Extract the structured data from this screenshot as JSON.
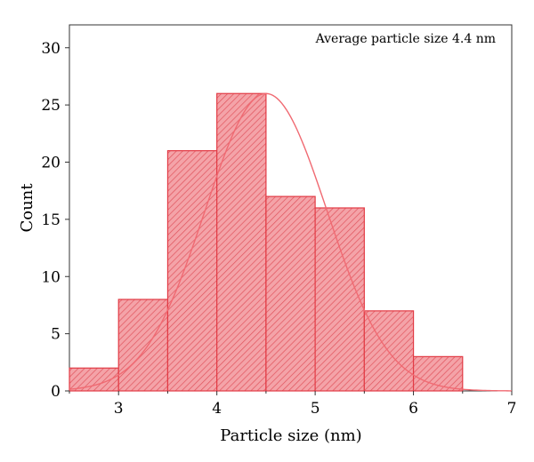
{
  "chart_data": {
    "type": "bar",
    "annotation": "Average particle size 4.4 nm",
    "xlabel": "Particle size (nm)",
    "ylabel": "Count",
    "xlim": [
      2.5,
      7
    ],
    "ylim": [
      0,
      32
    ],
    "x_ticks": [
      3,
      4,
      5,
      6,
      7
    ],
    "y_ticks": [
      0,
      5,
      10,
      15,
      20,
      25,
      30
    ],
    "grid": false,
    "bin_width": 0.5,
    "bins": [
      {
        "start": 2.5,
        "end": 3.0,
        "count": 2
      },
      {
        "start": 3.0,
        "end": 3.5,
        "count": 8
      },
      {
        "start": 3.5,
        "end": 4.0,
        "count": 21
      },
      {
        "start": 4.0,
        "end": 4.5,
        "count": 26
      },
      {
        "start": 4.5,
        "end": 5.0,
        "count": 17
      },
      {
        "start": 5.0,
        "end": 5.5,
        "count": 16
      },
      {
        "start": 5.5,
        "end": 6.0,
        "count": 7
      },
      {
        "start": 6.0,
        "end": 6.5,
        "count": 3
      }
    ],
    "fit_curve": {
      "kind": "gaussian",
      "peak_x": 4.5,
      "peak_y": 26,
      "sigma": 0.62
    },
    "colors": {
      "bar_fill": "#f4a3a8",
      "bar_hatch": "#e0535c",
      "bar_edge": "#e23b45",
      "curve": "#f06a72"
    }
  }
}
